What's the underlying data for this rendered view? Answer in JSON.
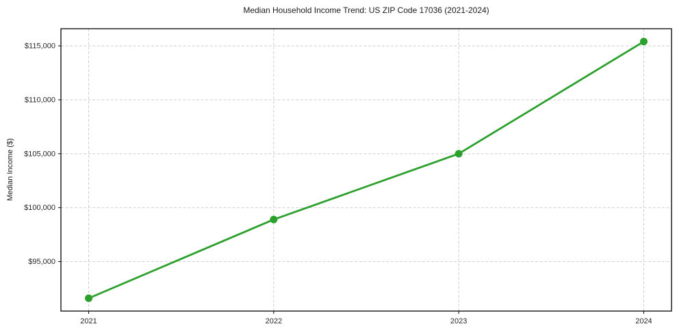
{
  "chart_data": {
    "type": "line",
    "title": "Median Household Income Trend: US ZIP Code 17036 (2021-2024)",
    "ylabel": "Median Income ($)",
    "xlabel": "",
    "x": [
      2021,
      2022,
      2023,
      2024
    ],
    "values": [
      91600,
      98900,
      105000,
      115400
    ],
    "categories": [
      "2021",
      "2022",
      "2023",
      "2024"
    ],
    "x_tick_values": [
      2021,
      2022,
      2023,
      2024
    ],
    "x_tick_labels": [
      "2021",
      "2022",
      "2023",
      "2024"
    ],
    "y_tick_values": [
      95000,
      100000,
      105000,
      110000,
      115000
    ],
    "y_tick_labels": [
      "$95,000",
      "$100,000",
      "$105,000",
      "$110,000",
      "$115,000"
    ],
    "xlim": [
      2020.85,
      2024.15
    ],
    "ylim": [
      90410,
      116590
    ],
    "grid": true,
    "grid_style": "dashed",
    "legend": "none",
    "colors": {
      "line": "#2ca02c",
      "marker": "#2ca02c",
      "grid": "#cdcdcd",
      "spine": "#000000",
      "background": "#ffffff"
    }
  }
}
